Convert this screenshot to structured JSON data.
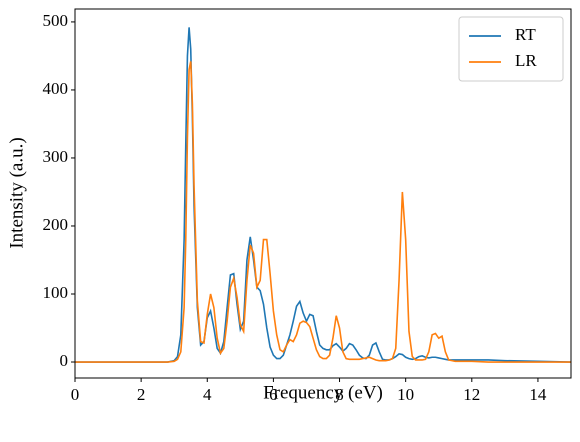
{
  "chart_data": {
    "type": "line",
    "xlabel": "Frequency (eV)",
    "ylabel": "Intensity (a.u.)",
    "x": [
      0,
      2,
      2.8,
      3.0,
      3.1,
      3.2,
      3.3,
      3.35,
      3.4,
      3.45,
      3.5,
      3.55,
      3.6,
      3.7,
      3.8,
      3.9,
      4.0,
      4.1,
      4.2,
      4.3,
      4.4,
      4.5,
      4.6,
      4.7,
      4.8,
      4.9,
      5.0,
      5.1,
      5.2,
      5.3,
      5.4,
      5.5,
      5.6,
      5.7,
      5.8,
      5.9,
      6.0,
      6.1,
      6.2,
      6.3,
      6.4,
      6.5,
      6.6,
      6.7,
      6.8,
      6.9,
      7.0,
      7.1,
      7.2,
      7.3,
      7.4,
      7.5,
      7.6,
      7.7,
      7.8,
      7.9,
      8.0,
      8.1,
      8.2,
      8.3,
      8.4,
      8.5,
      8.6,
      8.7,
      8.8,
      8.9,
      9.0,
      9.1,
      9.2,
      9.3,
      9.4,
      9.5,
      9.6,
      9.7,
      9.8,
      9.9,
      10.0,
      10.1,
      10.2,
      10.3,
      10.4,
      10.5,
      10.6,
      10.7,
      10.8,
      10.9,
      11.0,
      11.1,
      11.2,
      11.3,
      11.5,
      12,
      12.5,
      13,
      14,
      15
    ],
    "series": [
      {
        "name": "RT",
        "color": "#1f77b4",
        "values": [
          0,
          0,
          0,
          2,
          8,
          40,
          180,
          320,
          450,
          492,
          460,
          360,
          230,
          80,
          25,
          30,
          65,
          75,
          50,
          20,
          13,
          30,
          80,
          128,
          130,
          85,
          48,
          60,
          150,
          184,
          150,
          110,
          105,
          85,
          50,
          22,
          10,
          5,
          5,
          10,
          25,
          40,
          60,
          82,
          89,
          72,
          60,
          70,
          68,
          45,
          25,
          20,
          18,
          18,
          24,
          27,
          22,
          16,
          20,
          27,
          25,
          18,
          10,
          6,
          5,
          10,
          25,
          28,
          15,
          4,
          3,
          3,
          5,
          8,
          12,
          11,
          7,
          5,
          4,
          5,
          8,
          9,
          7,
          6,
          7,
          7,
          6,
          5,
          4,
          3,
          3,
          3,
          3,
          2,
          1,
          0
        ]
      },
      {
        "name": "LR",
        "color": "#ff7f0e",
        "values": [
          0,
          0,
          0,
          1,
          4,
          15,
          80,
          180,
          330,
          430,
          442,
          380,
          260,
          90,
          30,
          28,
          70,
          100,
          80,
          35,
          13,
          20,
          60,
          110,
          123,
          95,
          55,
          45,
          120,
          172,
          160,
          110,
          120,
          180,
          180,
          130,
          75,
          40,
          18,
          15,
          25,
          33,
          30,
          40,
          57,
          60,
          58,
          52,
          35,
          18,
          8,
          5,
          5,
          10,
          35,
          68,
          50,
          15,
          5,
          4,
          4,
          4,
          4,
          5,
          6,
          7,
          5,
          3,
          2,
          2,
          2,
          3,
          5,
          20,
          120,
          250,
          180,
          45,
          8,
          3,
          3,
          3,
          4,
          15,
          40,
          42,
          35,
          38,
          15,
          3,
          1,
          1,
          0,
          0,
          0,
          0
        ]
      }
    ],
    "xlim": [
      0,
      15
    ],
    "xticks": [
      0,
      2,
      4,
      6,
      8,
      10,
      12,
      14
    ],
    "ylim": [
      -23.5,
      519
    ],
    "yticks": [
      0,
      100,
      200,
      300,
      400,
      500
    ],
    "grid": false,
    "legend": "upper right"
  }
}
